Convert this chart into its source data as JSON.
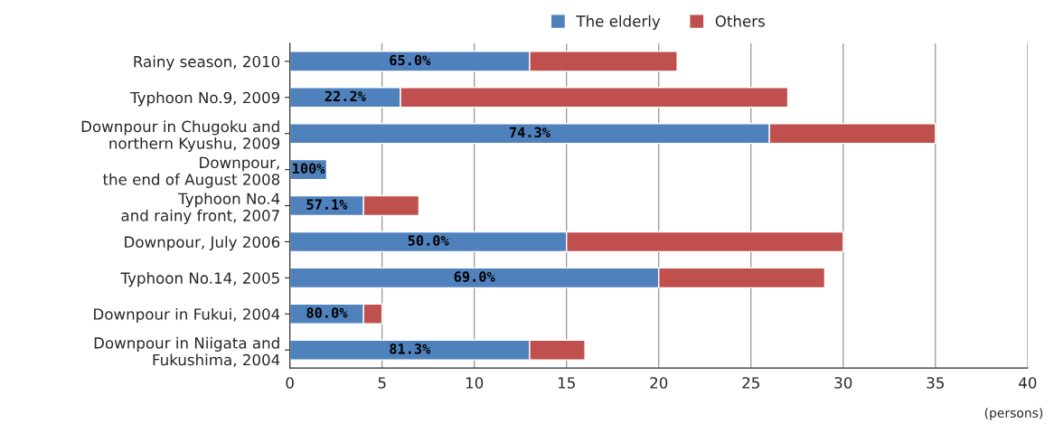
{
  "chart_data": {
    "type": "bar",
    "orientation": "horizontal",
    "stacked": true,
    "categories": [
      "Rainy season, 2010",
      "Typhoon No.9, 2009",
      "Downpour in Chugoku and\nnorthern Kyushu, 2009",
      "Downpour,\nthe end of August 2008",
      "Typhoon No.4\nand rainy front, 2007",
      "Downpour, July 2006",
      "Typhoon No.14, 2005",
      "Downpour in Fukui, 2004",
      "Downpour in Niigata and\nFukushima, 2004"
    ],
    "series": [
      {
        "name": "The elderly",
        "color": "#4f81bd",
        "values": [
          13,
          6,
          26,
          2,
          4,
          15,
          20,
          4,
          13
        ]
      },
      {
        "name": "Others",
        "color": "#c0504d",
        "values": [
          8,
          21,
          9,
          null,
          3,
          15,
          9,
          1,
          3
        ]
      }
    ],
    "annotations": [
      "65.0%",
      "22.2%",
      "74.3%",
      "100%",
      "57.1%",
      "50.0%",
      "69.0%",
      "80.0%",
      "81.3%"
    ],
    "xlim": [
      0,
      40
    ],
    "xticks": [
      0,
      5,
      10,
      15,
      20,
      25,
      30,
      35,
      40
    ],
    "xlabel": "(persons)",
    "grid": "x",
    "legend": "top"
  }
}
